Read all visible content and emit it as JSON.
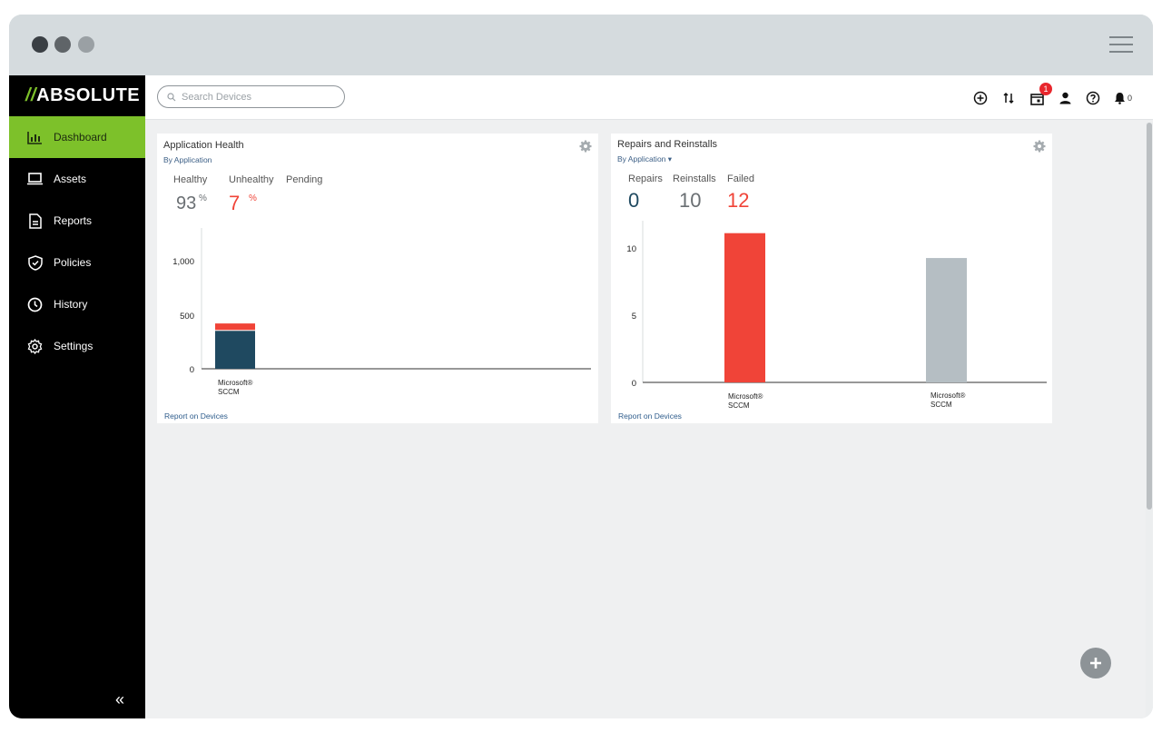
{
  "window": {
    "controls": [
      "close",
      "minimize",
      "maximize"
    ],
    "menu_icon": "hamburger-icon"
  },
  "brand": {
    "logo_text": "ABSOLUTE"
  },
  "search": {
    "placeholder": "Search Devices"
  },
  "topbar": {
    "notification_badge": "1",
    "bell_count": "0"
  },
  "sidebar": {
    "items": [
      {
        "label": "Dashboard",
        "icon": "bar-chart-icon",
        "active": true
      },
      {
        "label": "Assets",
        "icon": "laptop-icon"
      },
      {
        "label": "Reports",
        "icon": "document-icon"
      },
      {
        "label": "Policies",
        "icon": "shield-icon"
      },
      {
        "label": "History",
        "icon": "clock-icon"
      },
      {
        "label": "Settings",
        "icon": "gear-icon"
      }
    ],
    "collapse": "«"
  },
  "app_health": {
    "title": "Application Health",
    "subtitle": "By Application",
    "stats": [
      {
        "label": "Healthy",
        "value": "93",
        "unit": "%"
      },
      {
        "label": "Unhealthy",
        "value": "7",
        "unit": "%"
      },
      {
        "label": "Pending"
      }
    ],
    "report_link": "Report on Devices"
  },
  "repairs": {
    "title": "Repairs and Reinstalls",
    "subtitle": "By Application ▾",
    "stats": [
      {
        "label": "Repairs",
        "value": "0"
      },
      {
        "label": "Reinstalls",
        "value": "10"
      },
      {
        "label": "Failed",
        "value": "12"
      }
    ],
    "report_link": "Report on Devices"
  },
  "chart_data": [
    {
      "type": "bar",
      "stacked": true,
      "categories": [
        "Microsoft® SCCM"
      ],
      "series": [
        {
          "name": "Healthy",
          "values": [
            350
          ],
          "color": "#1f4960"
        },
        {
          "name": "Unhealthy",
          "values": [
            60
          ],
          "color": "#f04438"
        }
      ],
      "yticks": [
        "0",
        "500",
        "1,000"
      ],
      "ylim": [
        0,
        1300
      ],
      "grid": false
    },
    {
      "type": "bar",
      "categories": [
        "Microsoft® SCCM",
        "Microsoft® SCCM"
      ],
      "values": [
        12,
        10
      ],
      "colors": [
        "#f04438",
        "#b5bec3"
      ],
      "yticks": [
        "0",
        "5",
        "10"
      ],
      "ylim": [
        0,
        13
      ],
      "grid": false
    }
  ],
  "colors": {
    "accent": "#7dc12a",
    "healthy": "#1f4960",
    "unhealthy": "#f04438",
    "neutral": "#b5bec3",
    "link": "#2f5d8c"
  }
}
